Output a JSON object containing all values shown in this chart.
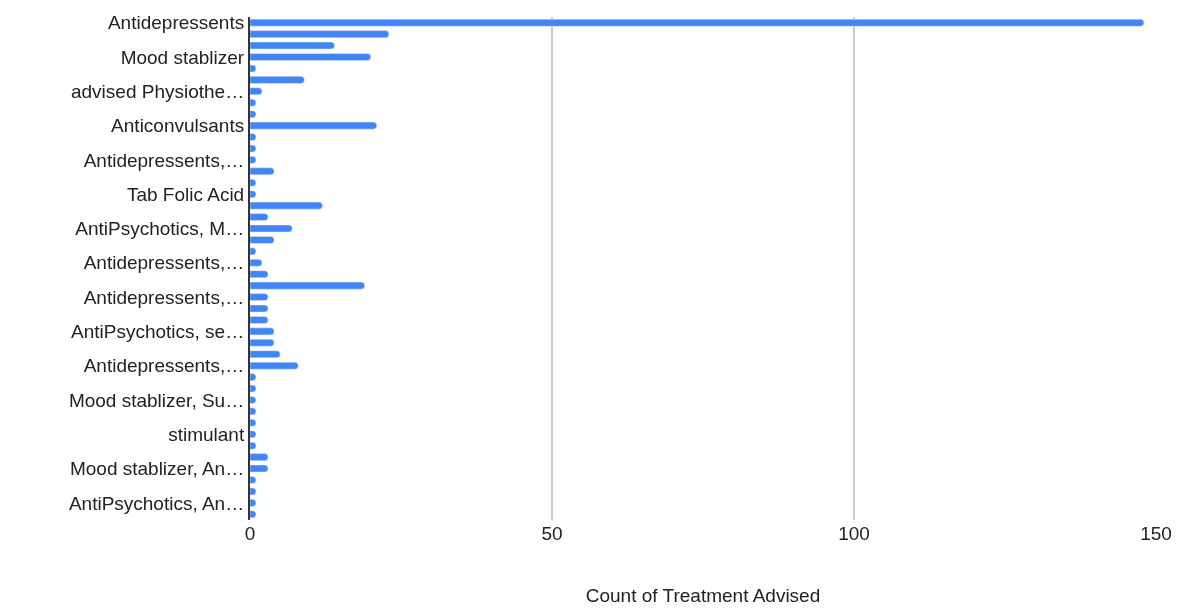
{
  "chart_data": {
    "type": "bar",
    "orientation": "horizontal",
    "xlabel": "Count of Treatment Advised",
    "categories": [
      "Antidepressents",
      null,
      null,
      "Mood stablizer",
      null,
      null,
      "advised Physiothe…",
      null,
      null,
      "Anticonvulsants",
      null,
      null,
      "Antidepressents,…",
      null,
      null,
      "Tab Folic Acid",
      null,
      null,
      "AntiPsychotics, M…",
      null,
      null,
      "Antidepressents,…",
      null,
      null,
      "Antidepressents,…",
      null,
      null,
      "AntiPsychotics, se…",
      null,
      null,
      "Antidepressents,…",
      null,
      null,
      "Mood stablizer, Su…",
      null,
      null,
      "stimulant",
      null,
      null,
      "Mood stablizer, An…",
      null,
      null,
      "AntiPsychotics, An…",
      null
    ],
    "values": [
      148,
      23,
      14,
      20,
      1,
      9,
      2,
      1,
      1,
      21,
      1,
      1,
      1,
      4,
      1,
      1,
      12,
      3,
      7,
      4,
      1,
      2,
      3,
      19,
      3,
      3,
      3,
      4,
      4,
      5,
      8,
      1,
      1,
      1,
      1,
      1,
      1,
      1,
      3,
      3,
      1,
      1,
      1,
      1
    ],
    "color": "#4285f4",
    "xlim": [
      0,
      150
    ],
    "xticks": [
      0,
      50,
      100,
      150
    ],
    "grid": "x"
  }
}
